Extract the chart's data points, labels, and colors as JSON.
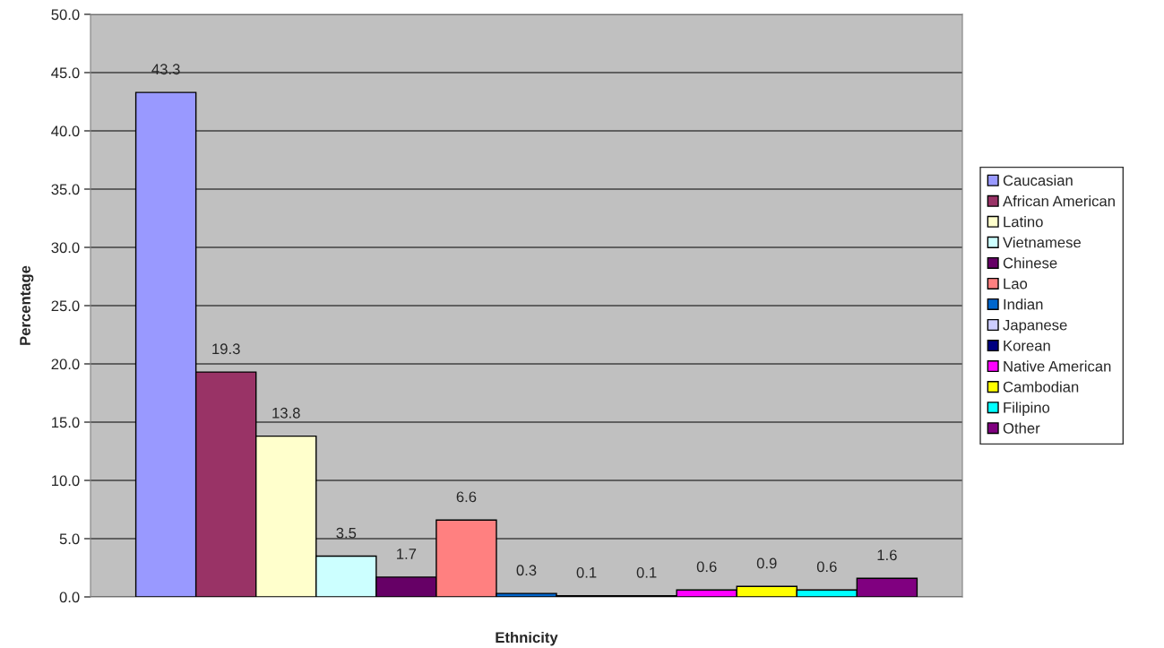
{
  "chart_data": {
    "type": "bar",
    "xlabel": "Ethnicity",
    "ylabel": "Percentage",
    "categories": [
      null
    ],
    "series": [
      {
        "name": "Caucasian",
        "color": "#9999ff",
        "values": [
          43.3
        ]
      },
      {
        "name": "African American",
        "color": "#993366",
        "values": [
          19.3
        ]
      },
      {
        "name": "Latino",
        "color": "#ffffcc",
        "values": [
          13.8
        ]
      },
      {
        "name": "Vietnamese",
        "color": "#ccffff",
        "values": [
          3.5
        ]
      },
      {
        "name": "Chinese",
        "color": "#660066",
        "values": [
          1.7
        ]
      },
      {
        "name": "Lao",
        "color": "#ff8080",
        "values": [
          6.6
        ]
      },
      {
        "name": "Indian",
        "color": "#0066cc",
        "values": [
          0.3
        ]
      },
      {
        "name": "Japanese",
        "color": "#ccccff",
        "values": [
          0.1
        ]
      },
      {
        "name": "Korean",
        "color": "#000080",
        "values": [
          0.1
        ]
      },
      {
        "name": "Native American",
        "color": "#ff00ff",
        "values": [
          0.6
        ]
      },
      {
        "name": "Cambodian",
        "color": "#ffff00",
        "values": [
          0.9
        ]
      },
      {
        "name": "Filipino",
        "color": "#00ffff",
        "values": [
          0.6
        ]
      },
      {
        "name": "Other",
        "color": "#800080",
        "values": [
          1.6
        ]
      }
    ],
    "ylim": [
      0,
      50
    ],
    "yticks": [
      {
        "value": 0,
        "label": "0.0"
      },
      {
        "value": 5,
        "label": "5.0"
      },
      {
        "value": 10,
        "label": "10.0"
      },
      {
        "value": 15,
        "label": "15.0"
      },
      {
        "value": 20,
        "label": "20.0"
      },
      {
        "value": 25,
        "label": "25.0"
      },
      {
        "value": 30,
        "label": "30.0"
      },
      {
        "value": 35,
        "label": "35.0"
      },
      {
        "value": 40,
        "label": "40.0"
      },
      {
        "value": 45,
        "label": "45.0"
      },
      {
        "value": 50,
        "label": "50.0"
      }
    ],
    "grid": "y",
    "legend": "right",
    "data_labels": true,
    "tick_labels": "y"
  }
}
